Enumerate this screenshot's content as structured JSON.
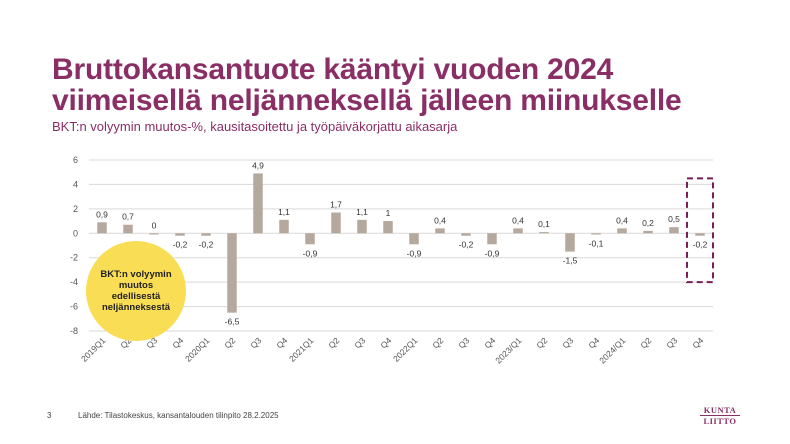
{
  "header": {
    "title_line1": "Bruttokansantuote kääntyi vuoden 2024",
    "title_line2": "viimeisellä neljänneksellä jälleen miinukselle",
    "subtitle": "BKT:n volyymin muutos-%, kausitasoitettu ja työpäiväkorjattu aikasarja"
  },
  "callout": {
    "text": "BKT:n volyymin muutos edellisestä neljänneksestä"
  },
  "footer": {
    "page_number": "3",
    "source": "Lähde: Tilastokeskus, kansantalouden tilinpito 28.2.2025",
    "logo_line1": "KUNTA",
    "logo_line2": "LIITTO"
  },
  "colors": {
    "title": "#8a2e66",
    "bar": "#b5a89d",
    "grid": "#d9d9d9",
    "highlight_box": "#7a1f55",
    "callout_fill": "#f9de55"
  },
  "chart_data": {
    "type": "bar",
    "categories": [
      "2019Q1",
      "Q2",
      "Q3",
      "Q4",
      "2020Q1",
      "Q2",
      "Q3",
      "Q4",
      "2021Q1",
      "Q2",
      "Q3",
      "Q4",
      "2022Q1",
      "Q2",
      "Q3",
      "Q4",
      "2023/Q1",
      "Q2",
      "Q3",
      "Q4",
      "2024/Q1",
      "Q2",
      "Q3",
      "Q4"
    ],
    "values": [
      0.9,
      0.7,
      0,
      -0.2,
      -0.2,
      -6.5,
      4.9,
      1.1,
      -0.9,
      1.7,
      1.1,
      1,
      -0.9,
      0.4,
      -0.2,
      -0.9,
      0.4,
      0.1,
      -1.5,
      -0.1,
      0.4,
      0.2,
      0.5,
      -0.2
    ],
    "labels": [
      "0,9",
      "0,7",
      "0",
      "-0,2",
      "-0,2",
      "-6,5",
      "4,9",
      "1,1",
      "-0,9",
      "1,7",
      "1,1",
      "1",
      "-0,9",
      "0,4",
      "-0,2",
      "-0,9",
      "0,4",
      "0,1",
      "-1,5",
      "-0,1",
      "0,4",
      "0,2",
      "0,5",
      "-0,2"
    ],
    "yticks": [
      "6",
      "4",
      "2",
      "0",
      "-2",
      "-4",
      "-6",
      "-8"
    ],
    "ylim": [
      -8,
      6
    ],
    "grid": true,
    "highlight_index": 23
  }
}
